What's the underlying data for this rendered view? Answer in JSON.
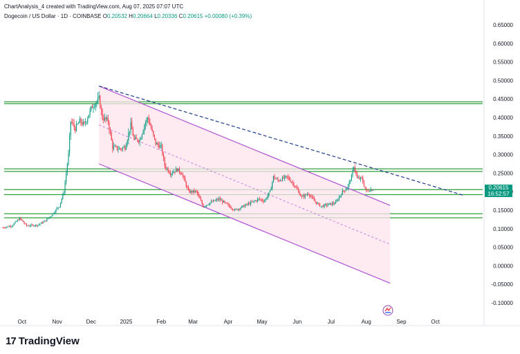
{
  "header": {
    "created_by": "ChartAnalysis_4 created with TradingView.com, Aug 07, 2025 07:07 UTC",
    "symbol": "Dogecoin / US Dollar · 1D · COINBASE",
    "open_label": "O",
    "open": "0.20532",
    "high_label": "H",
    "high": "0.20664",
    "low_label": "L",
    "low": "0.20336",
    "close_label": "C",
    "close": "0.20615",
    "change": "+0.00080 (+0.39%)"
  },
  "price_tag": {
    "price": "0.20615",
    "countdown": "16:52:57",
    "color": "#089981"
  },
  "brand": {
    "name": "TradingView",
    "mark": "17"
  },
  "colors": {
    "up": "#089981",
    "down": "#f23645",
    "hline": "#2e9e3c",
    "channel": "#b04fd0",
    "channel_fill": "#fce4ec",
    "trend": "#1e3a8a"
  },
  "chart_data": {
    "type": "candlestick",
    "title": "",
    "y_axis": {
      "min": -0.1,
      "max": 0.65,
      "ticks": [
        "0.65000",
        "0.60000",
        "0.55000",
        "0.50000",
        "0.45000",
        "0.40000",
        "0.35000",
        "0.30000",
        "0.25000",
        "0.20000",
        "0.15000",
        "0.10000",
        "0.05000",
        "0.00000",
        "-0.05000",
        "-0.10000"
      ]
    },
    "x_axis": {
      "start": "2024-09-14",
      "end": "2025-11-13",
      "ticks": [
        {
          "label": "Oct",
          "date": "2024-10-01"
        },
        {
          "label": "Nov",
          "date": "2024-11-01"
        },
        {
          "label": "Dec",
          "date": "2024-12-01"
        },
        {
          "label": "2025",
          "date": "2025-01-01"
        },
        {
          "label": "Feb",
          "date": "2025-02-01"
        },
        {
          "label": "Mar",
          "date": "2025-03-01"
        },
        {
          "label": "Apr",
          "date": "2025-04-01"
        },
        {
          "label": "May",
          "date": "2025-05-01"
        },
        {
          "label": "Jun",
          "date": "2025-06-01"
        },
        {
          "label": "Jul",
          "date": "2025-07-01"
        },
        {
          "label": "Aug",
          "date": "2025-08-01"
        },
        {
          "label": "Sep",
          "date": "2025-09-01"
        },
        {
          "label": "Oct",
          "date": "2025-10-01"
        }
      ]
    },
    "price_path": [
      [
        "2024-09-14",
        0.103
      ],
      [
        "2024-09-22",
        0.108
      ],
      [
        "2024-09-29",
        0.128
      ],
      [
        "2024-10-05",
        0.108
      ],
      [
        "2024-10-15",
        0.11
      ],
      [
        "2024-10-22",
        0.122
      ],
      [
        "2024-10-28",
        0.14
      ],
      [
        "2024-11-03",
        0.162
      ],
      [
        "2024-11-07",
        0.2
      ],
      [
        "2024-11-11",
        0.3
      ],
      [
        "2024-11-13",
        0.39
      ],
      [
        "2024-11-17",
        0.37
      ],
      [
        "2024-11-21",
        0.39
      ],
      [
        "2024-11-25",
        0.38
      ],
      [
        "2024-11-29",
        0.41
      ],
      [
        "2024-12-02",
        0.43
      ],
      [
        "2024-12-08",
        0.45
      ],
      [
        "2024-12-11",
        0.4
      ],
      [
        "2024-12-16",
        0.39
      ],
      [
        "2024-12-20",
        0.32
      ],
      [
        "2024-12-26",
        0.315
      ],
      [
        "2024-12-31",
        0.32
      ],
      [
        "2025-01-05",
        0.38
      ],
      [
        "2025-01-08",
        0.34
      ],
      [
        "2025-01-13",
        0.34
      ],
      [
        "2025-01-17",
        0.38
      ],
      [
        "2025-01-20",
        0.4
      ],
      [
        "2025-01-27",
        0.33
      ],
      [
        "2025-02-01",
        0.32
      ],
      [
        "2025-02-04",
        0.27
      ],
      [
        "2025-02-09",
        0.25
      ],
      [
        "2025-02-15",
        0.26
      ],
      [
        "2025-02-19",
        0.25
      ],
      [
        "2025-02-25",
        0.2
      ],
      [
        "2025-03-04",
        0.2
      ],
      [
        "2025-03-10",
        0.16
      ],
      [
        "2025-03-16",
        0.17
      ],
      [
        "2025-03-24",
        0.18
      ],
      [
        "2025-03-31",
        0.165
      ],
      [
        "2025-04-07",
        0.15
      ],
      [
        "2025-04-14",
        0.16
      ],
      [
        "2025-04-21",
        0.17
      ],
      [
        "2025-04-28",
        0.18
      ],
      [
        "2025-05-03",
        0.175
      ],
      [
        "2025-05-08",
        0.2
      ],
      [
        "2025-05-11",
        0.24
      ],
      [
        "2025-05-15",
        0.23
      ],
      [
        "2025-05-23",
        0.24
      ],
      [
        "2025-05-29",
        0.22
      ],
      [
        "2025-06-05",
        0.185
      ],
      [
        "2025-06-11",
        0.195
      ],
      [
        "2025-06-16",
        0.175
      ],
      [
        "2025-06-22",
        0.16
      ],
      [
        "2025-06-28",
        0.165
      ],
      [
        "2025-07-05",
        0.17
      ],
      [
        "2025-07-11",
        0.2
      ],
      [
        "2025-07-15",
        0.21
      ],
      [
        "2025-07-19",
        0.24
      ],
      [
        "2025-07-21",
        0.27
      ],
      [
        "2025-07-24",
        0.235
      ],
      [
        "2025-07-28",
        0.235
      ],
      [
        "2025-08-01",
        0.2
      ],
      [
        "2025-08-04",
        0.205
      ],
      [
        "2025-08-07",
        0.206
      ]
    ],
    "horizontal_levels": [
      0.4425,
      0.4375,
      0.2615,
      0.2545,
      0.2055,
      0.192,
      0.1405,
      0.1295
    ],
    "channel": {
      "upper": [
        [
          "2024-12-08",
          0.485
        ],
        [
          "2025-08-22",
          0.163
        ]
      ],
      "lower": [
        [
          "2024-12-08",
          0.275
        ],
        [
          "2025-08-22",
          -0.047
        ]
      ],
      "midline": [
        [
          "2024-12-08",
          0.38
        ],
        [
          "2025-08-22",
          0.058
        ]
      ],
      "fill_end": "2025-08-22"
    },
    "trendline": [
      [
        "2024-12-08",
        0.485
      ],
      [
        "2025-10-26",
        0.19
      ]
    ]
  }
}
